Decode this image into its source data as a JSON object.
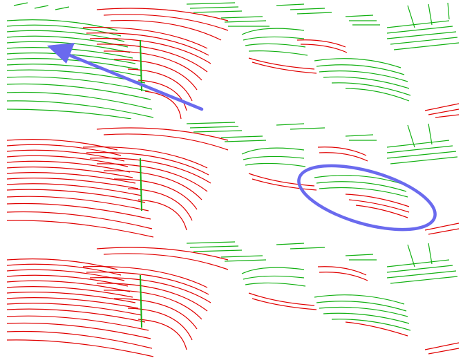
{
  "figure": {
    "panel_count": 3,
    "colors": {
      "background": "#ffffff",
      "class_a_points": "#e00000",
      "class_b_points": "#12b012",
      "annotation": "#6a6aee"
    },
    "panels": [
      {
        "name": "panel-1",
        "annotation": "arrow-pointing-up-left"
      },
      {
        "name": "panel-2",
        "annotation": "ellipse-around-car"
      },
      {
        "name": "panel-3",
        "annotation": "none"
      }
    ]
  }
}
